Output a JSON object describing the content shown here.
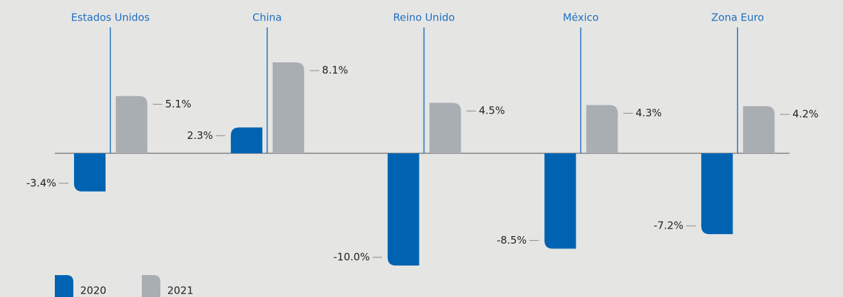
{
  "chart_data": {
    "type": "bar",
    "categories": [
      "Estados Unidos",
      "China",
      "Reino Unido",
      "México",
      "Zona Euro"
    ],
    "series": [
      {
        "name": "2020",
        "color": "#0063b1",
        "values": [
          -3.4,
          2.3,
          -10.0,
          -8.5,
          -7.2
        ],
        "value_labels": [
          "-3.4%",
          "2.3%",
          "-10.0%",
          "-8.5%",
          "-7.2%"
        ]
      },
      {
        "name": "2021",
        "color": "#a9aeb3",
        "values": [
          5.1,
          8.1,
          4.5,
          4.3,
          4.2
        ],
        "value_labels": [
          "5.1%",
          "8.1%",
          "4.5%",
          "4.3%",
          "4.2%"
        ]
      }
    ]
  }
}
